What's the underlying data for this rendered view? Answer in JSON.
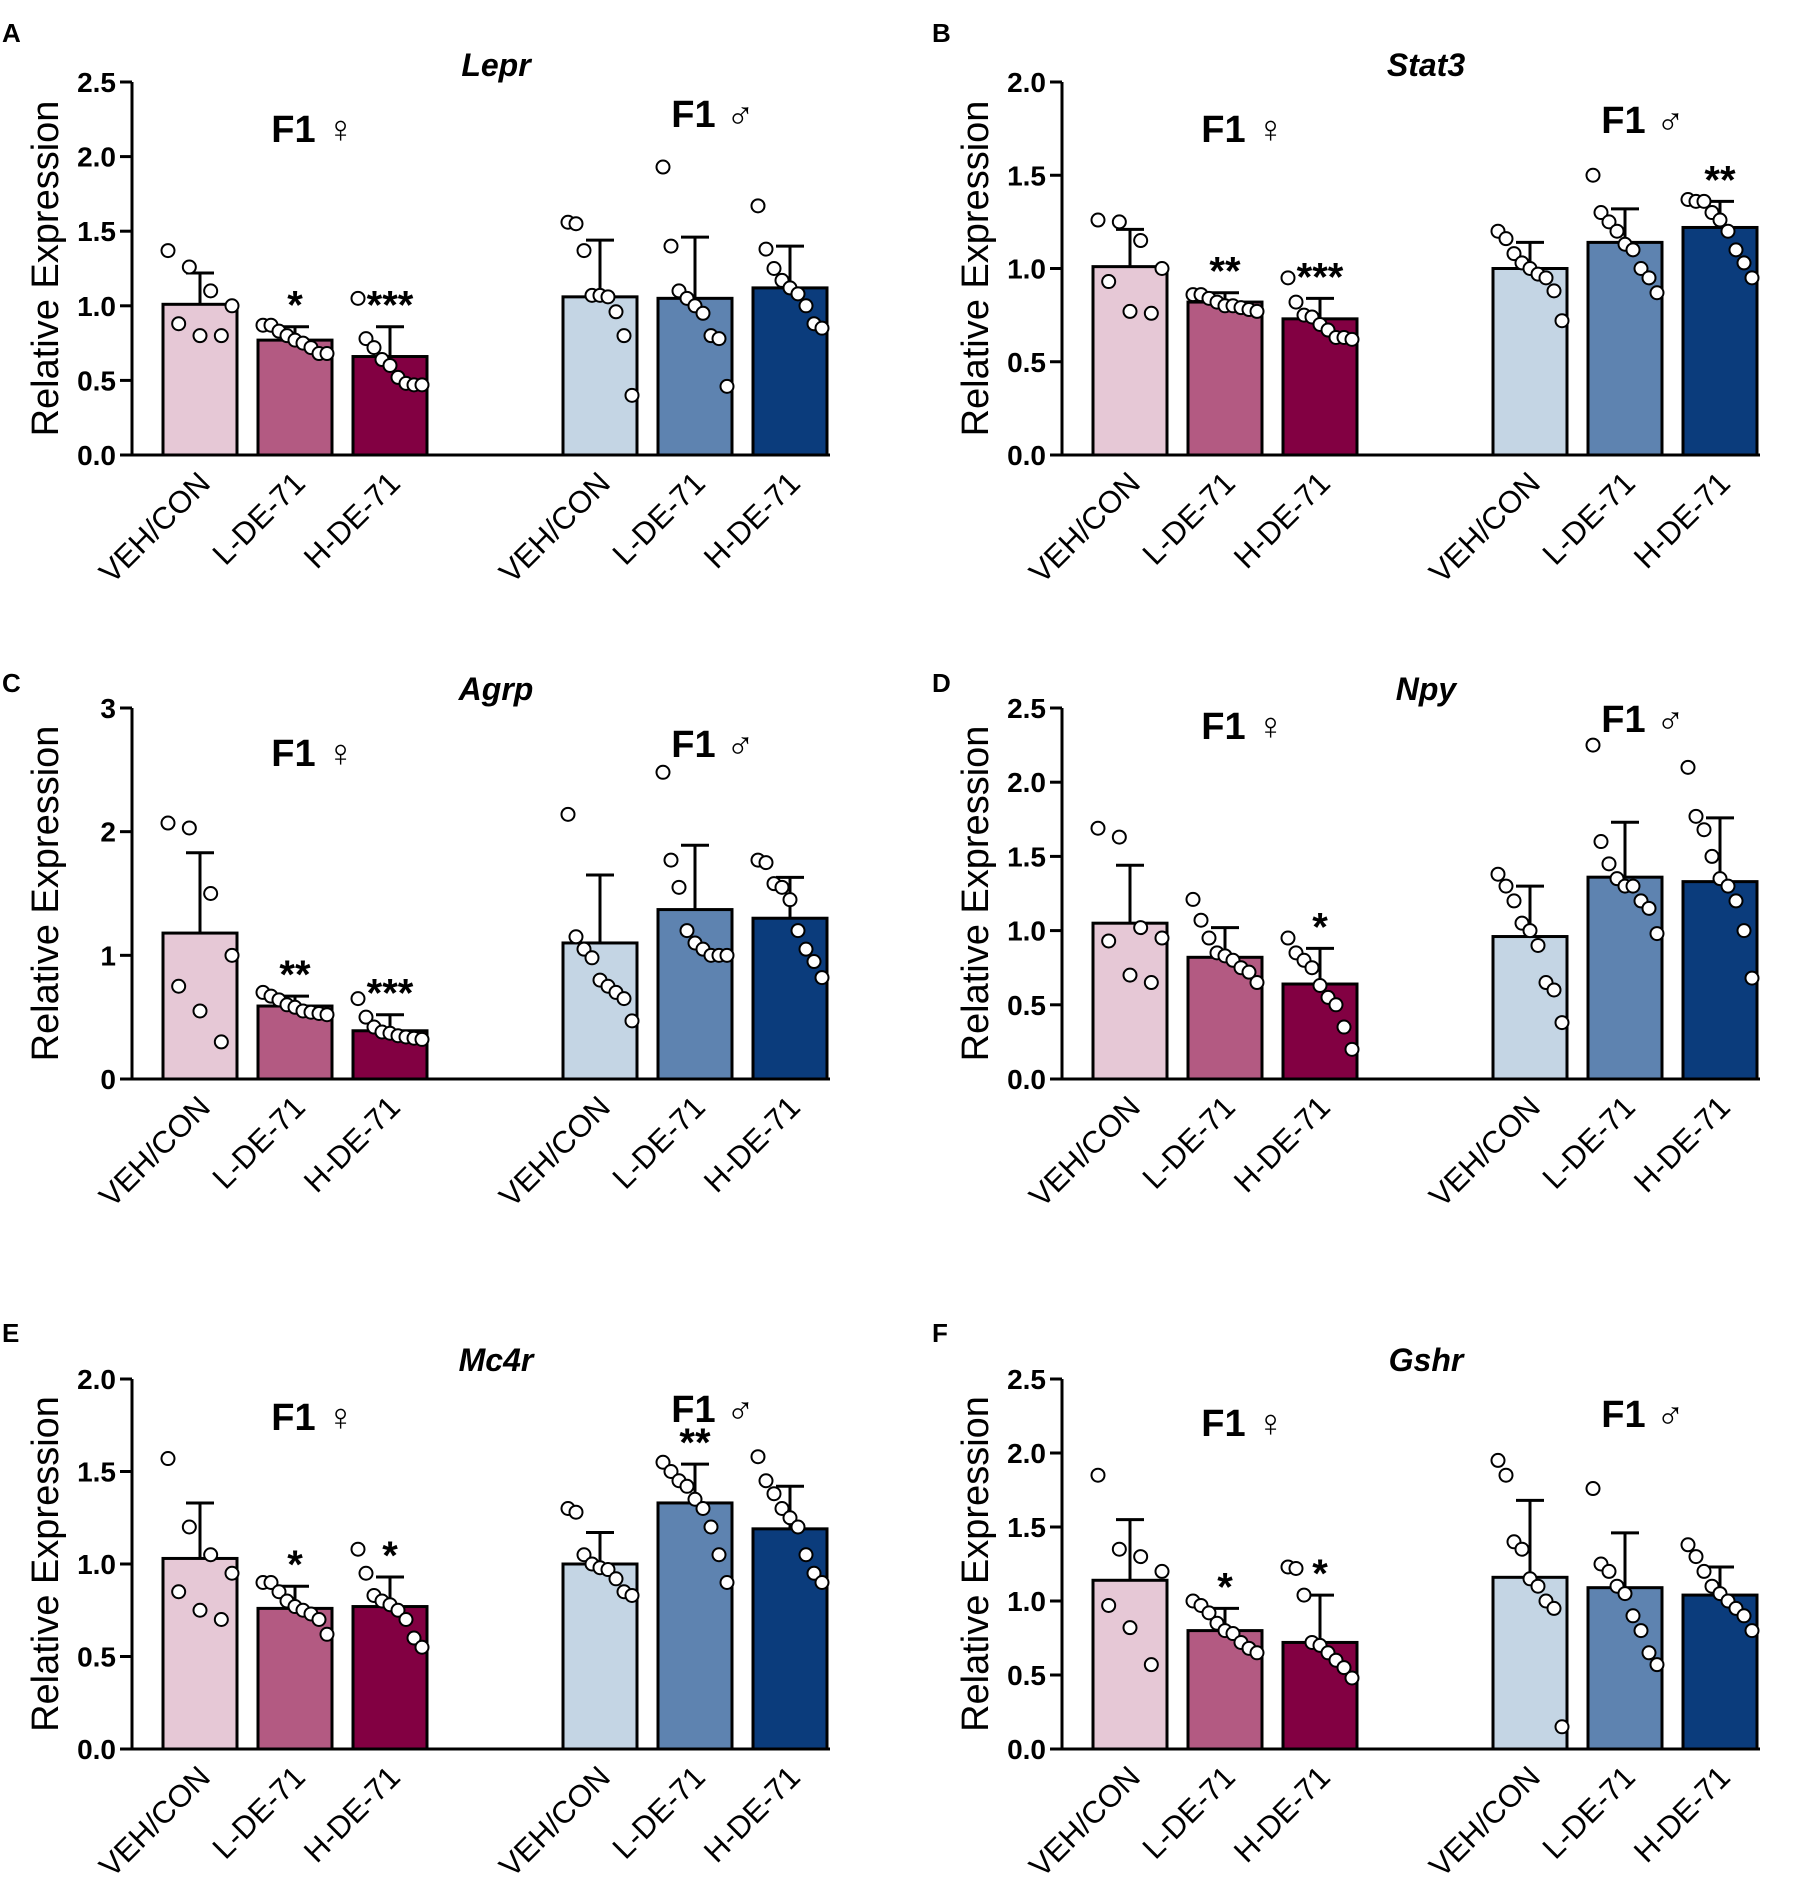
{
  "figure": {
    "categories": [
      "VEH/CON",
      "L-DE-71",
      "H-DE-71",
      "VEH/CON",
      "L-DE-71",
      "H-DE-71"
    ],
    "group_labels": [
      "F1 ♀",
      "F1 ♂"
    ],
    "colors": [
      "#e6c8d6",
      "#b35a82",
      "#820042",
      "#c4d5e4",
      "#5e83b0",
      "#0b3c7c"
    ]
  },
  "chart_data": [
    {
      "panel": "A",
      "type": "bar",
      "title": "Lepr",
      "ylabel": "Relative Expression",
      "ylim": [
        0,
        2.5
      ],
      "yticks": [
        "0.0",
        "0.5",
        "1.0",
        "1.5",
        "2.0",
        "2.5"
      ],
      "categories": [
        "VEH/CON",
        "L-DE-71",
        "H-DE-71",
        "VEH/CON",
        "L-DE-71",
        "H-DE-71"
      ],
      "values": [
        1.01,
        0.77,
        0.66,
        1.06,
        1.05,
        1.12
      ],
      "sd": [
        0.21,
        0.09,
        0.2,
        0.38,
        0.41,
        0.28
      ],
      "points": [
        [
          1.37,
          1.26,
          1.1,
          1.0,
          0.88,
          0.8,
          0.8
        ],
        [
          0.87,
          0.87,
          0.83,
          0.8,
          0.77,
          0.75,
          0.72,
          0.68,
          0.68
        ],
        [
          1.05,
          0.78,
          0.72,
          0.64,
          0.6,
          0.52,
          0.48,
          0.47,
          0.47
        ],
        [
          1.56,
          1.55,
          1.37,
          1.07,
          1.07,
          1.06,
          0.96,
          0.8,
          0.4
        ],
        [
          1.93,
          1.4,
          1.1,
          1.05,
          1.0,
          0.95,
          0.8,
          0.78,
          0.46
        ],
        [
          1.67,
          1.38,
          1.25,
          1.17,
          1.12,
          1.08,
          1.0,
          0.88,
          0.85
        ]
      ],
      "significance": [
        "",
        "*",
        "***",
        "",
        "",
        ""
      ]
    },
    {
      "panel": "B",
      "type": "bar",
      "title": "Stat3",
      "ylabel": "Relative Expression",
      "ylim": [
        0,
        2.0
      ],
      "yticks": [
        "0.0",
        "0.5",
        "1.0",
        "1.5",
        "2.0"
      ],
      "categories": [
        "VEH/CON",
        "L-DE-71",
        "H-DE-71",
        "VEH/CON",
        "L-DE-71",
        "H-DE-71"
      ],
      "values": [
        1.01,
        0.82,
        0.73,
        1.0,
        1.14,
        1.22
      ],
      "sd": [
        0.2,
        0.05,
        0.11,
        0.14,
        0.18,
        0.14
      ],
      "points": [
        [
          1.26,
          1.25,
          1.15,
          1.0,
          0.93,
          0.77,
          0.76
        ],
        [
          0.86,
          0.86,
          0.84,
          0.82,
          0.8,
          0.8,
          0.79,
          0.78,
          0.77
        ],
        [
          0.95,
          0.82,
          0.75,
          0.74,
          0.7,
          0.67,
          0.63,
          0.63,
          0.62
        ],
        [
          1.2,
          1.16,
          1.08,
          1.03,
          1.0,
          0.97,
          0.95,
          0.88,
          0.72
        ],
        [
          1.5,
          1.3,
          1.25,
          1.2,
          1.13,
          1.1,
          1.0,
          0.95,
          0.87
        ],
        [
          1.37,
          1.36,
          1.36,
          1.3,
          1.26,
          1.2,
          1.1,
          1.03,
          0.95
        ]
      ],
      "significance": [
        "",
        "**",
        "***",
        "",
        "",
        "**"
      ]
    },
    {
      "panel": "C",
      "type": "bar",
      "title": "Agrp",
      "ylabel": "Relative Expression",
      "ylim": [
        0,
        3
      ],
      "yticks": [
        "0",
        "1",
        "2",
        "3"
      ],
      "categories": [
        "VEH/CON",
        "L-DE-71",
        "H-DE-71",
        "VEH/CON",
        "L-DE-71",
        "H-DE-71"
      ],
      "values": [
        1.18,
        0.59,
        0.39,
        1.1,
        1.37,
        1.3
      ],
      "sd": [
        0.65,
        0.08,
        0.13,
        0.55,
        0.52,
        0.33
      ],
      "points": [
        [
          2.07,
          2.03,
          1.5,
          1.0,
          0.75,
          0.55,
          0.3
        ],
        [
          0.7,
          0.67,
          0.64,
          0.6,
          0.58,
          0.55,
          0.54,
          0.53,
          0.52
        ],
        [
          0.65,
          0.5,
          0.42,
          0.38,
          0.37,
          0.35,
          0.34,
          0.33,
          0.32
        ],
        [
          2.14,
          1.15,
          1.05,
          0.98,
          0.8,
          0.75,
          0.7,
          0.65,
          0.47
        ],
        [
          2.48,
          1.77,
          1.55,
          1.2,
          1.1,
          1.05,
          1.0,
          1.0,
          1.0
        ],
        [
          1.77,
          1.75,
          1.58,
          1.55,
          1.45,
          1.2,
          1.05,
          0.95,
          0.82
        ]
      ],
      "significance": [
        "",
        "**",
        "***",
        "",
        "",
        ""
      ]
    },
    {
      "panel": "D",
      "type": "bar",
      "title": "Npy",
      "ylabel": "Relative Expression",
      "ylim": [
        0,
        2.5
      ],
      "yticks": [
        "0.0",
        "0.5",
        "1.0",
        "1.5",
        "2.0",
        "2.5"
      ],
      "categories": [
        "VEH/CON",
        "L-DE-71",
        "H-DE-71",
        "VEH/CON",
        "L-DE-71",
        "H-DE-71"
      ],
      "values": [
        1.05,
        0.82,
        0.64,
        0.96,
        1.36,
        1.33
      ],
      "sd": [
        0.39,
        0.2,
        0.24,
        0.34,
        0.37,
        0.43
      ],
      "points": [
        [
          1.69,
          1.63,
          1.02,
          0.95,
          0.93,
          0.7,
          0.65
        ],
        [
          1.21,
          1.07,
          0.95,
          0.85,
          0.83,
          0.8,
          0.75,
          0.72,
          0.65
        ],
        [
          0.95,
          0.85,
          0.8,
          0.75,
          0.63,
          0.55,
          0.5,
          0.35,
          0.2
        ],
        [
          1.38,
          1.3,
          1.2,
          1.05,
          1.0,
          0.9,
          0.65,
          0.6,
          0.38
        ],
        [
          2.25,
          1.6,
          1.45,
          1.35,
          1.3,
          1.3,
          1.2,
          1.15,
          0.98
        ],
        [
          2.1,
          1.77,
          1.68,
          1.5,
          1.35,
          1.3,
          1.2,
          1.0,
          0.68
        ]
      ],
      "significance": [
        "",
        "",
        "*",
        "",
        "",
        ""
      ]
    },
    {
      "panel": "E",
      "type": "bar",
      "title": "Mc4r",
      "ylabel": "Relative Expression",
      "ylim": [
        0,
        2.0
      ],
      "yticks": [
        "0.0",
        "0.5",
        "1.0",
        "1.5",
        "2.0"
      ],
      "categories": [
        "VEH/CON",
        "L-DE-71",
        "H-DE-71",
        "VEH/CON",
        "L-DE-71",
        "H-DE-71"
      ],
      "values": [
        1.03,
        0.76,
        0.77,
        1.0,
        1.33,
        1.19
      ],
      "sd": [
        0.3,
        0.12,
        0.16,
        0.17,
        0.21,
        0.23
      ],
      "points": [
        [
          1.57,
          1.2,
          1.05,
          0.95,
          0.85,
          0.75,
          0.7
        ],
        [
          0.9,
          0.9,
          0.85,
          0.8,
          0.77,
          0.75,
          0.73,
          0.7,
          0.62
        ],
        [
          1.08,
          0.95,
          0.83,
          0.8,
          0.78,
          0.75,
          0.7,
          0.6,
          0.55
        ],
        [
          1.3,
          1.28,
          1.05,
          1.0,
          0.98,
          0.97,
          0.92,
          0.85,
          0.83
        ],
        [
          1.55,
          1.5,
          1.45,
          1.42,
          1.35,
          1.3,
          1.2,
          1.05,
          0.9
        ],
        [
          1.58,
          1.45,
          1.38,
          1.3,
          1.25,
          1.2,
          1.05,
          0.95,
          0.9
        ]
      ],
      "significance": [
        "",
        "*",
        "*",
        "",
        "**",
        ""
      ]
    },
    {
      "panel": "F",
      "type": "bar",
      "title": "Gshr",
      "ylabel": "Relative Expression",
      "ylim": [
        0,
        2.5
      ],
      "yticks": [
        "0.0",
        "0.5",
        "1.0",
        "1.5",
        "2.0",
        "2.5"
      ],
      "categories": [
        "VEH/CON",
        "L-DE-71",
        "H-DE-71",
        "VEH/CON",
        "L-DE-71",
        "H-DE-71"
      ],
      "values": [
        1.14,
        0.8,
        0.72,
        1.16,
        1.09,
        1.04
      ],
      "sd": [
        0.41,
        0.15,
        0.32,
        0.52,
        0.37,
        0.19
      ],
      "points": [
        [
          1.85,
          1.35,
          1.3,
          1.2,
          0.97,
          0.82,
          0.57
        ],
        [
          1.0,
          0.97,
          0.92,
          0.85,
          0.8,
          0.78,
          0.72,
          0.68,
          0.65
        ],
        [
          1.23,
          1.22,
          1.04,
          0.72,
          0.7,
          0.65,
          0.6,
          0.55,
          0.48
        ],
        [
          1.95,
          1.85,
          1.4,
          1.35,
          1.15,
          1.1,
          1.0,
          0.95,
          0.15
        ],
        [
          1.76,
          1.25,
          1.2,
          1.1,
          1.05,
          0.9,
          0.8,
          0.65,
          0.57
        ],
        [
          1.38,
          1.3,
          1.2,
          1.1,
          1.05,
          1.0,
          0.95,
          0.9,
          0.8
        ]
      ],
      "significance": [
        "",
        "*",
        "*",
        "",
        "",
        ""
      ]
    }
  ]
}
